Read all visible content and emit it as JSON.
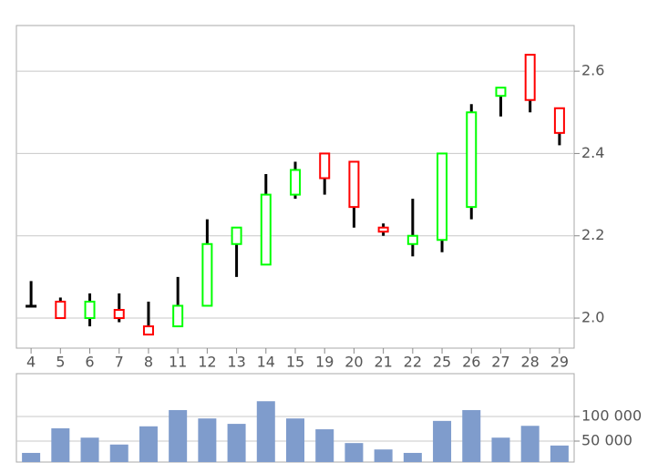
{
  "chart_data": [
    {
      "type": "candlestick",
      "categories": [
        "4",
        "5",
        "6",
        "7",
        "8",
        "11",
        "12",
        "13",
        "14",
        "15",
        "19",
        "20",
        "21",
        "22",
        "25",
        "26",
        "27",
        "28",
        "29"
      ],
      "open": [
        2.03,
        2.04,
        2.0,
        2.02,
        1.98,
        1.98,
        2.03,
        2.18,
        2.13,
        2.3,
        2.4,
        2.38,
        2.22,
        2.18,
        2.19,
        2.27,
        2.54,
        2.64,
        2.51
      ],
      "high": [
        2.09,
        2.05,
        2.06,
        2.06,
        2.04,
        2.1,
        2.24,
        2.22,
        2.35,
        2.38,
        2.4,
        2.38,
        2.23,
        2.29,
        2.4,
        2.52,
        2.56,
        2.64,
        2.51
      ],
      "low": [
        2.03,
        2.0,
        1.98,
        1.99,
        1.96,
        1.98,
        2.03,
        2.1,
        2.13,
        2.29,
        2.3,
        2.22,
        2.2,
        2.15,
        2.16,
        2.24,
        2.49,
        2.5,
        2.42
      ],
      "close": [
        2.03,
        2.0,
        2.04,
        2.0,
        1.96,
        2.03,
        2.18,
        2.22,
        2.3,
        2.36,
        2.34,
        2.27,
        2.21,
        2.2,
        2.4,
        2.5,
        2.56,
        2.53,
        2.45
      ],
      "up_color": "#00ff00",
      "down_color": "#ff0000",
      "wick_color": "#000000",
      "ylim": [
        1.927,
        2.711
      ],
      "yticks": [
        {
          "value": 2.0,
          "label": "2.0"
        },
        2.2,
        2.4,
        2.6
      ],
      "grid": true
    },
    {
      "type": "bar",
      "values": [
        26000,
        76000,
        57000,
        43000,
        80000,
        113000,
        96000,
        85000,
        131000,
        96000,
        74000,
        46000,
        33000,
        26000,
        91000,
        113000,
        57000,
        81000,
        41000
      ],
      "color": "#7f9ccc",
      "ylim": [
        7400,
        187000
      ],
      "yticks": [
        {
          "value": 50000,
          "label": "50 000"
        },
        {
          "value": 100000,
          "label": "100 000"
        }
      ],
      "grid": true
    }
  ]
}
